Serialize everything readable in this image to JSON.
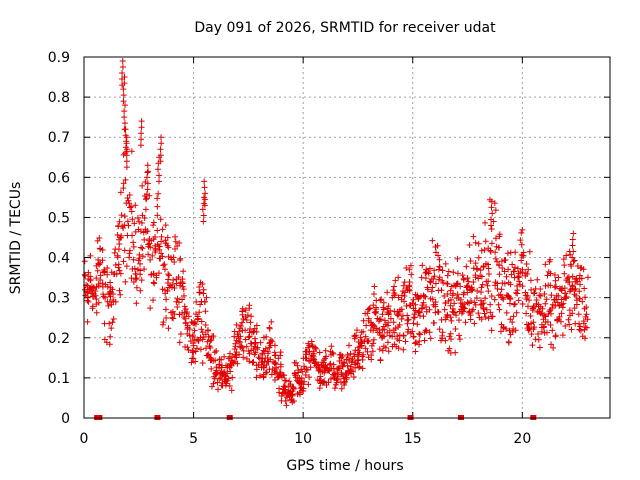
{
  "chart_data": {
    "type": "scatter",
    "title": "Day 091 of 2026, SRMTID for receiver udat",
    "xlabel": "GPS time / hours",
    "ylabel": "SRMTID / TECUs",
    "xlim": [
      0,
      24
    ],
    "ylim": [
      0,
      0.9
    ],
    "xticks": [
      0,
      5,
      10,
      15,
      20
    ],
    "xtick_labels": [
      "0",
      "5",
      "10",
      "15",
      "20"
    ],
    "yticks": [
      0,
      0.1,
      0.2,
      0.3,
      0.4,
      0.5,
      0.6,
      0.7,
      0.8,
      0.9
    ],
    "ytick_labels": [
      "0",
      "0.1",
      "0.2",
      "0.3",
      "0.4",
      "0.5",
      "0.6",
      "0.7",
      "0.8",
      "0.9"
    ],
    "grid": true,
    "marker": "+",
    "color": "#e00000",
    "series": [
      {
        "name": "SRMTID",
        "x": [
          0.0,
          0.2,
          0.4,
          0.6,
          0.8,
          1.0,
          1.2,
          1.4,
          1.6,
          1.8,
          2.0,
          2.2,
          2.4,
          2.6,
          2.8,
          3.0,
          3.2,
          3.4,
          3.6,
          3.8,
          4.0,
          4.2,
          4.4,
          4.6,
          4.8,
          5.0,
          5.2,
          5.4,
          5.6,
          5.8,
          6.0,
          6.2,
          6.4,
          6.6,
          6.8,
          7.0,
          7.2,
          7.4,
          7.6,
          7.8,
          8.0,
          8.2,
          8.4,
          8.6,
          8.8,
          9.0,
          9.2,
          9.4,
          9.6,
          9.8,
          10.0,
          10.2,
          10.4,
          10.6,
          10.8,
          11.0,
          11.2,
          11.4,
          11.6,
          11.8,
          12.0,
          12.2,
          12.4,
          12.6,
          12.8,
          13.0,
          13.2,
          13.4,
          13.6,
          13.8,
          14.0,
          14.2,
          14.4,
          14.6,
          14.8,
          15.0,
          15.2,
          15.4,
          15.6,
          15.8,
          16.0,
          16.2,
          16.4,
          16.6,
          16.8,
          17.0,
          17.2,
          17.4,
          17.6,
          17.8,
          18.0,
          18.2,
          18.4,
          18.6,
          18.8,
          19.0,
          19.2,
          19.4,
          19.6,
          19.8,
          20.0,
          20.2,
          20.4,
          20.6,
          20.8,
          21.0,
          21.2,
          21.4,
          21.6,
          21.8,
          22.0,
          22.2,
          22.4,
          22.6,
          22.8
        ],
        "mid": [
          0.32,
          0.35,
          0.3,
          0.38,
          0.33,
          0.28,
          0.3,
          0.4,
          0.46,
          0.55,
          0.48,
          0.42,
          0.4,
          0.46,
          0.44,
          0.4,
          0.43,
          0.45,
          0.38,
          0.35,
          0.34,
          0.32,
          0.3,
          0.22,
          0.2,
          0.22,
          0.24,
          0.26,
          0.18,
          0.15,
          0.12,
          0.11,
          0.1,
          0.12,
          0.16,
          0.2,
          0.24,
          0.22,
          0.19,
          0.17,
          0.14,
          0.15,
          0.18,
          0.13,
          0.12,
          0.08,
          0.06,
          0.07,
          0.1,
          0.09,
          0.12,
          0.14,
          0.15,
          0.13,
          0.11,
          0.12,
          0.13,
          0.1,
          0.12,
          0.11,
          0.13,
          0.15,
          0.16,
          0.18,
          0.2,
          0.22,
          0.24,
          0.25,
          0.22,
          0.24,
          0.26,
          0.25,
          0.27,
          0.3,
          0.28,
          0.26,
          0.24,
          0.28,
          0.3,
          0.32,
          0.34,
          0.3,
          0.28,
          0.26,
          0.27,
          0.3,
          0.28,
          0.32,
          0.33,
          0.35,
          0.34,
          0.36,
          0.38,
          0.4,
          0.36,
          0.32,
          0.3,
          0.31,
          0.33,
          0.35,
          0.34,
          0.3,
          0.28,
          0.26,
          0.27,
          0.28,
          0.3,
          0.27,
          0.28,
          0.32,
          0.34,
          0.33,
          0.3,
          0.28,
          0.27
        ],
        "spread": [
          0.12,
          0.14,
          0.1,
          0.12,
          0.16,
          0.14,
          0.1,
          0.14,
          0.2,
          0.24,
          0.2,
          0.16,
          0.14,
          0.18,
          0.18,
          0.16,
          0.18,
          0.2,
          0.16,
          0.14,
          0.14,
          0.14,
          0.12,
          0.1,
          0.08,
          0.1,
          0.12,
          0.14,
          0.1,
          0.08,
          0.06,
          0.06,
          0.05,
          0.06,
          0.08,
          0.08,
          0.1,
          0.1,
          0.08,
          0.08,
          0.06,
          0.07,
          0.08,
          0.06,
          0.06,
          0.05,
          0.04,
          0.04,
          0.05,
          0.05,
          0.06,
          0.06,
          0.06,
          0.06,
          0.05,
          0.05,
          0.06,
          0.05,
          0.06,
          0.05,
          0.06,
          0.06,
          0.07,
          0.08,
          0.08,
          0.1,
          0.1,
          0.12,
          0.1,
          0.1,
          0.12,
          0.12,
          0.12,
          0.14,
          0.12,
          0.12,
          0.1,
          0.12,
          0.14,
          0.14,
          0.16,
          0.14,
          0.12,
          0.12,
          0.12,
          0.14,
          0.12,
          0.14,
          0.14,
          0.16,
          0.16,
          0.16,
          0.18,
          0.18,
          0.16,
          0.14,
          0.14,
          0.14,
          0.14,
          0.16,
          0.16,
          0.14,
          0.12,
          0.12,
          0.12,
          0.12,
          0.14,
          0.12,
          0.12,
          0.14,
          0.14,
          0.14,
          0.12,
          0.12,
          0.12
        ],
        "peaks": [
          [
            1.75,
            0.89
          ],
          [
            1.82,
            0.85
          ],
          [
            1.85,
            0.78
          ],
          [
            1.9,
            0.72
          ],
          [
            1.95,
            0.7
          ],
          [
            2.6,
            0.74
          ],
          [
            2.9,
            0.63
          ],
          [
            3.5,
            0.7
          ],
          [
            3.4,
            0.65
          ],
          [
            5.5,
            0.59
          ],
          [
            5.45,
            0.55
          ],
          [
            18.6,
            0.54
          ],
          [
            22.3,
            0.46
          ]
        ]
      }
    ],
    "gap_markers_x": [
      0.6,
      0.7,
      3.35,
      6.65,
      14.9,
      17.2,
      20.5
    ],
    "point_count_per_hour_slot": 14
  }
}
